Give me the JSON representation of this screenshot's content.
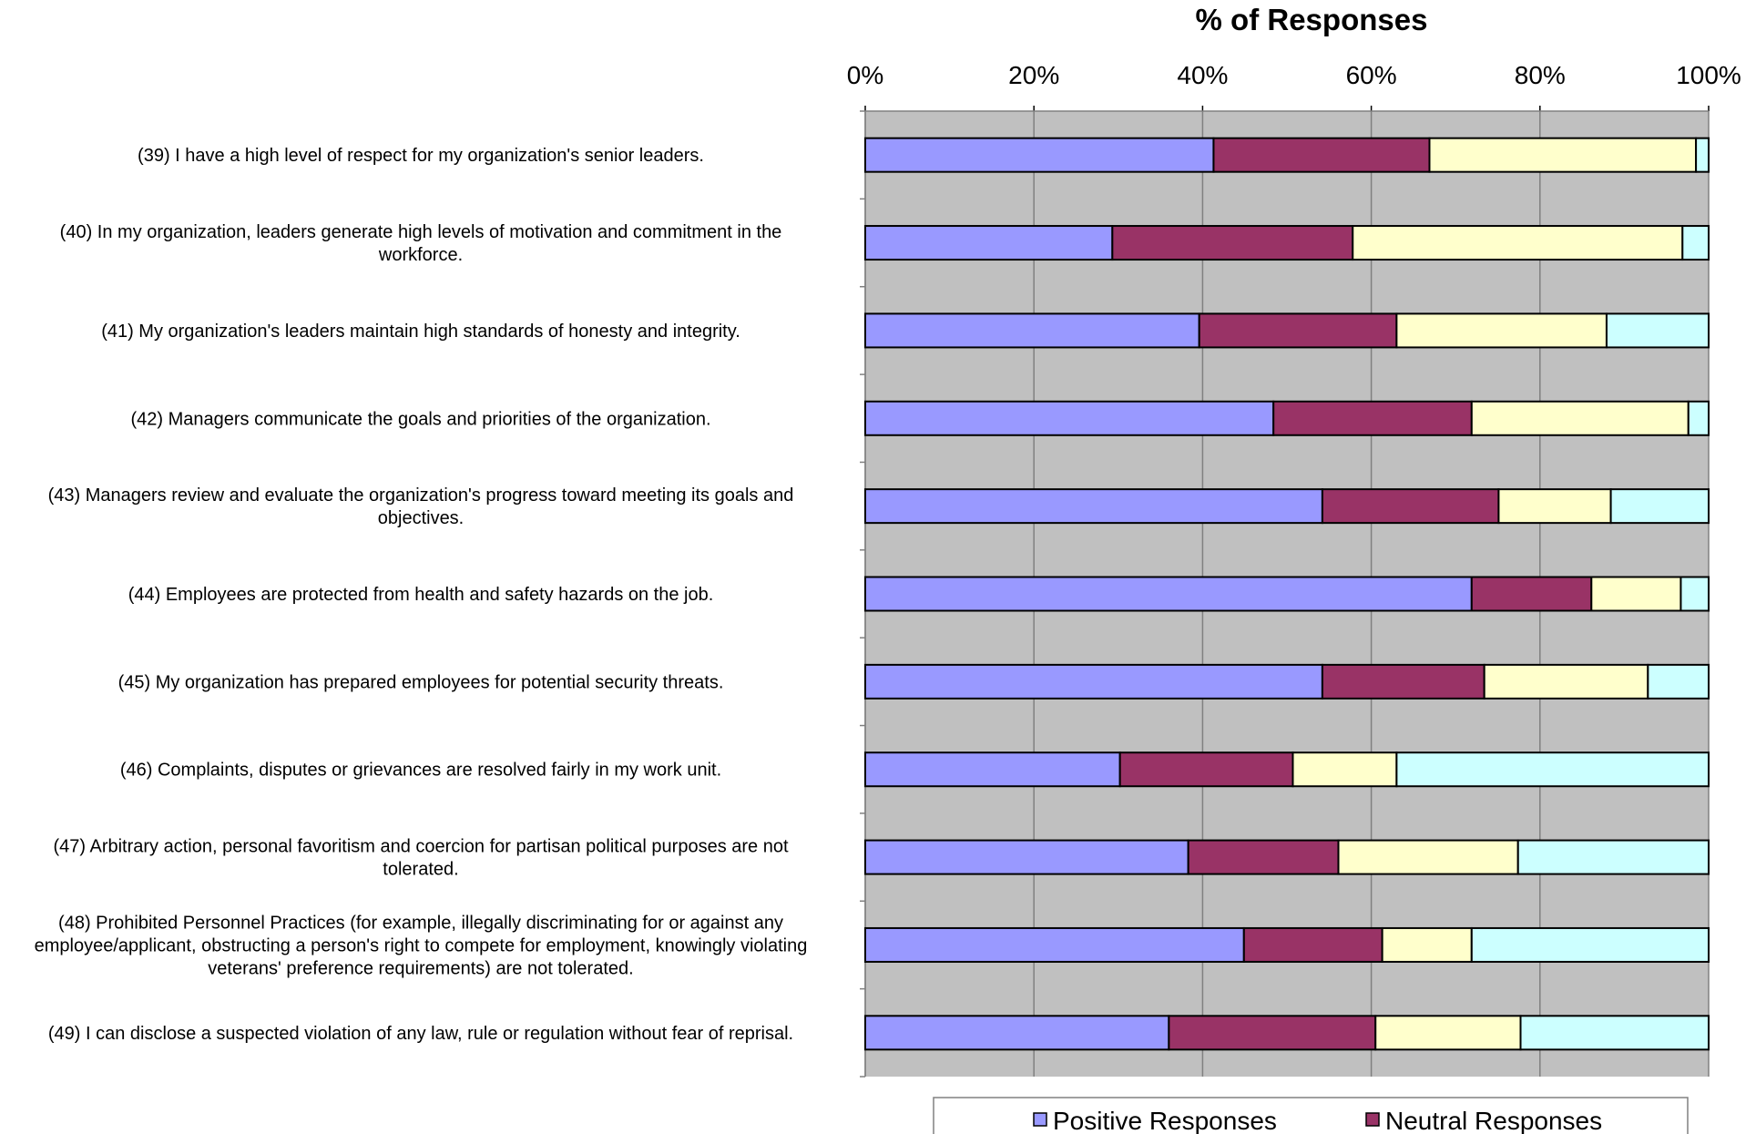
{
  "chart_data": {
    "type": "bar",
    "orientation": "horizontal",
    "stacked": "percent",
    "title": "% of Responses",
    "xlim": [
      0,
      100
    ],
    "x_ticks": [
      "0%",
      "20%",
      "40%",
      "60%",
      "80%",
      "100%"
    ],
    "grid": true,
    "legend": "bottom",
    "categories": [
      "(39) I have a high level of respect for my organization's senior leaders.",
      "(40) In my organization, leaders generate high levels of motivation and commitment in the workforce.",
      "(41) My organization's leaders maintain high standards of honesty and integrity.",
      "(42) Managers communicate the goals and priorities of the organization.",
      "(43) Managers review and evaluate the organization's progress toward meeting its goals and objectives.",
      "(44) Employees are protected from health and safety hazards on the job.",
      "(45) My organization has prepared employees for potential security threats.",
      "(46) Complaints, disputes or grievances are resolved fairly in my work unit.",
      "(47) Arbitrary action, personal favoritism and coercion for partisan political purposes are not tolerated.",
      "(48) Prohibited Personnel Practices (for example, illegally discriminating for or against any employee/applicant, obstructing a person's right to compete for employment, knowingly violating veterans' preference requirements) are not tolerated.",
      "(49) I can disclose a suspected violation of any law, rule or regulation without fear of reprisal."
    ],
    "category_lines": [
      [
        "(39) I have a high level of respect for my organization's senior leaders."
      ],
      [
        "(40) In my organization, leaders generate high levels of motivation and commitment in the",
        "workforce."
      ],
      [
        "(41) My organization's leaders maintain high standards of honesty and integrity."
      ],
      [
        "(42) Managers communicate the goals and priorities of the organization."
      ],
      [
        "(43) Managers review and evaluate the organization's progress toward meeting its goals and",
        "objectives."
      ],
      [
        "(44) Employees are protected from health and safety hazards on the job."
      ],
      [
        "(45) My organization has prepared employees for potential security threats."
      ],
      [
        "(46) Complaints, disputes or grievances are resolved fairly in my work unit."
      ],
      [
        "(47) Arbitrary action, personal favoritism and coercion for partisan political purposes are not",
        "tolerated."
      ],
      [
        "(48) Prohibited Personnel Practices (for example, illegally discriminating for or against any",
        "employee/applicant, obstructing a person's right to compete for employment, knowingly violating",
        "veterans' preference requirements) are not tolerated."
      ],
      [
        "(49) I can disclose a suspected violation of any law, rule or regulation without fear of reprisal."
      ]
    ],
    "series": [
      {
        "name": "Positive Responses",
        "color": "#9999ff",
        "values": [
          41.3,
          29.3,
          39.6,
          48.4,
          54.2,
          71.9,
          54.2,
          30.2,
          38.3,
          44.9,
          36.0
        ]
      },
      {
        "name": "Neutral Responses",
        "color": "#993366",
        "values": [
          25.6,
          28.5,
          23.4,
          23.5,
          20.9,
          14.2,
          19.2,
          20.5,
          17.8,
          16.4,
          24.5
        ]
      },
      {
        "values": [
          31.6,
          39.1,
          24.9,
          25.7,
          13.3,
          10.6,
          19.4,
          12.3,
          21.3,
          10.6,
          17.2
        ],
        "color": "#ffffcc"
      },
      {
        "values": [
          1.5,
          3.1,
          12.1,
          2.4,
          11.6,
          3.3,
          7.2,
          37.0,
          22.6,
          28.1,
          22.3
        ],
        "color": "#ccffff"
      }
    ],
    "colors": {
      "plot_background": "#c0c0c0",
      "grid": "#808080",
      "bar_outline": "#000000"
    }
  }
}
